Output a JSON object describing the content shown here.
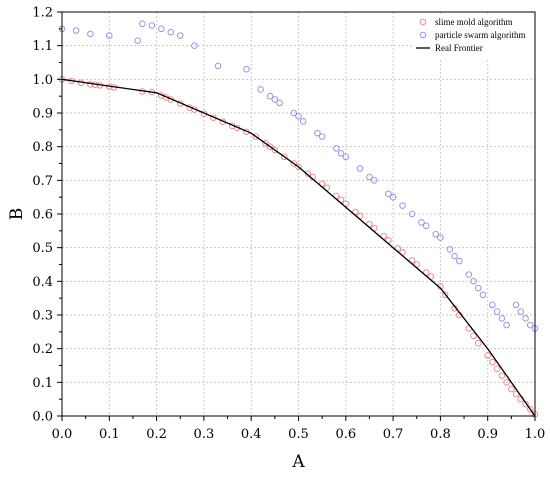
{
  "chart_data": {
    "type": "scatter",
    "xlabel": "A",
    "ylabel": "B",
    "xlim": [
      0,
      1
    ],
    "ylim": [
      0,
      1.2
    ],
    "x_ticks": [
      0.0,
      0.1,
      0.2,
      0.3,
      0.4,
      0.5,
      0.6,
      0.7,
      0.8,
      0.9,
      1.0
    ],
    "y_ticks": [
      0.0,
      0.1,
      0.2,
      0.3,
      0.4,
      0.5,
      0.6,
      0.7,
      0.8,
      0.9,
      1.0,
      1.1,
      1.2
    ],
    "x_tick_labels": [
      "0.0",
      "0.1",
      "0.2",
      "0.3",
      "0.4",
      "0.5",
      "0.6",
      "0.7",
      "0.8",
      "0.9",
      "1.0"
    ],
    "y_tick_labels": [
      "0.0",
      "0.1",
      "0.2",
      "0.3",
      "0.4",
      "0.5",
      "0.6",
      "0.7",
      "0.8",
      "0.9",
      "1.0",
      "1.1",
      "1.2"
    ],
    "grid": true,
    "legend_position": "top-right",
    "series": [
      {
        "name": "slime mold algorithm",
        "marker": "circle-open",
        "color": "#f08080",
        "x": [
          0.0,
          0.02,
          0.04,
          0.06,
          0.07,
          0.08,
          0.1,
          0.11,
          0.17,
          0.19,
          0.21,
          0.22,
          0.23,
          0.25,
          0.27,
          0.28,
          0.3,
          0.32,
          0.34,
          0.36,
          0.37,
          0.39,
          0.41,
          0.43,
          0.44,
          0.45,
          0.47,
          0.49,
          0.5,
          0.52,
          0.53,
          0.55,
          0.56,
          0.58,
          0.59,
          0.6,
          0.62,
          0.63,
          0.65,
          0.66,
          0.68,
          0.69,
          0.71,
          0.72,
          0.74,
          0.75,
          0.77,
          0.78,
          0.8,
          0.81,
          0.83,
          0.84,
          0.86,
          0.87,
          0.88,
          0.9,
          0.91,
          0.92,
          0.93,
          0.94,
          0.95,
          0.96,
          0.97,
          0.98,
          0.99,
          1.0
        ],
        "y": [
          1.0,
          0.995,
          0.99,
          0.985,
          0.984,
          0.982,
          0.978,
          0.976,
          0.964,
          0.962,
          0.952,
          0.946,
          0.94,
          0.928,
          0.916,
          0.91,
          0.898,
          0.886,
          0.874,
          0.862,
          0.856,
          0.844,
          0.83,
          0.81,
          0.8,
          0.79,
          0.77,
          0.75,
          0.74,
          0.72,
          0.71,
          0.69,
          0.678,
          0.654,
          0.642,
          0.63,
          0.606,
          0.594,
          0.57,
          0.558,
          0.534,
          0.522,
          0.498,
          0.486,
          0.462,
          0.45,
          0.426,
          0.414,
          0.385,
          0.36,
          0.32,
          0.3,
          0.26,
          0.238,
          0.216,
          0.18,
          0.16,
          0.14,
          0.12,
          0.1,
          0.08,
          0.065,
          0.05,
          0.035,
          0.02,
          0.005
        ]
      },
      {
        "name": "particle swarm algorithm",
        "marker": "circle-open",
        "color": "#8c8ce6",
        "x": [
          0.0,
          0.03,
          0.06,
          0.1,
          0.16,
          0.17,
          0.19,
          0.21,
          0.23,
          0.25,
          0.28,
          0.33,
          0.39,
          0.42,
          0.44,
          0.45,
          0.46,
          0.49,
          0.5,
          0.51,
          0.54,
          0.55,
          0.58,
          0.59,
          0.6,
          0.63,
          0.65,
          0.66,
          0.69,
          0.7,
          0.72,
          0.74,
          0.76,
          0.77,
          0.79,
          0.8,
          0.82,
          0.83,
          0.84,
          0.86,
          0.87,
          0.88,
          0.89,
          0.91,
          0.92,
          0.93,
          0.94,
          0.96,
          0.97,
          0.98,
          0.99,
          1.0
        ],
        "y": [
          1.15,
          1.145,
          1.135,
          1.13,
          1.115,
          1.165,
          1.16,
          1.15,
          1.14,
          1.13,
          1.1,
          1.04,
          1.03,
          0.97,
          0.95,
          0.94,
          0.93,
          0.9,
          0.89,
          0.875,
          0.84,
          0.83,
          0.795,
          0.78,
          0.77,
          0.735,
          0.71,
          0.7,
          0.66,
          0.65,
          0.625,
          0.6,
          0.575,
          0.565,
          0.54,
          0.53,
          0.495,
          0.475,
          0.46,
          0.42,
          0.4,
          0.38,
          0.36,
          0.33,
          0.31,
          0.29,
          0.27,
          0.33,
          0.31,
          0.29,
          0.27,
          0.26
        ]
      },
      {
        "name": "Real Frontier",
        "marker": "line",
        "color": "#000000",
        "x": [
          0.0,
          0.1,
          0.2,
          0.4,
          0.5,
          0.6,
          0.7,
          0.8,
          0.9,
          1.0
        ],
        "y": [
          1.0,
          0.98,
          0.96,
          0.84,
          0.74,
          0.62,
          0.5,
          0.38,
          0.2,
          0.0
        ]
      }
    ]
  }
}
